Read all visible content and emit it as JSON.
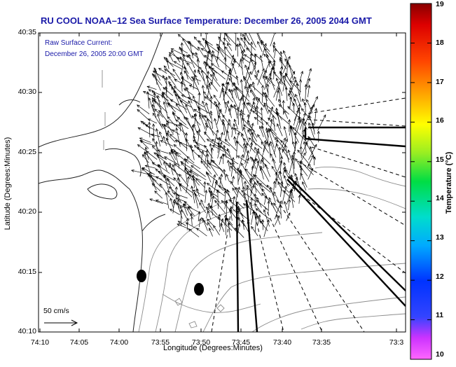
{
  "title": "RU COOL   NOAA–12  Sea Surface Temperature:  December 26, 2005 2044 GMT",
  "overlay_label": "Raw Surface Current:",
  "overlay_time": "December 26, 2005 20:00 GMT",
  "xlabel": "Longitude (Degrees:Minutes)",
  "ylabel": "Latitude (Degrees:Minutes)",
  "x_ticks": [
    "74:10",
    "74:05",
    "74:00",
    "73:55",
    "73:50",
    "73:45",
    "73:40",
    "73:35",
    "73:3"
  ],
  "y_ticks": [
    "40:35",
    "40:30",
    "40:25",
    "40:20",
    "40:15",
    "40:10"
  ],
  "scale_label": "50 cm/s",
  "colorbar": {
    "label": "Temperature (°C)",
    "ticks": [
      "19",
      "18",
      "17",
      "16",
      "15",
      "14",
      "13",
      "12",
      "11",
      "10"
    ],
    "min": 10,
    "max": 19
  },
  "colors": {
    "text_blue": "#1a1aa8",
    "coast": "#222222",
    "bathy": "#8c8c8c"
  }
}
